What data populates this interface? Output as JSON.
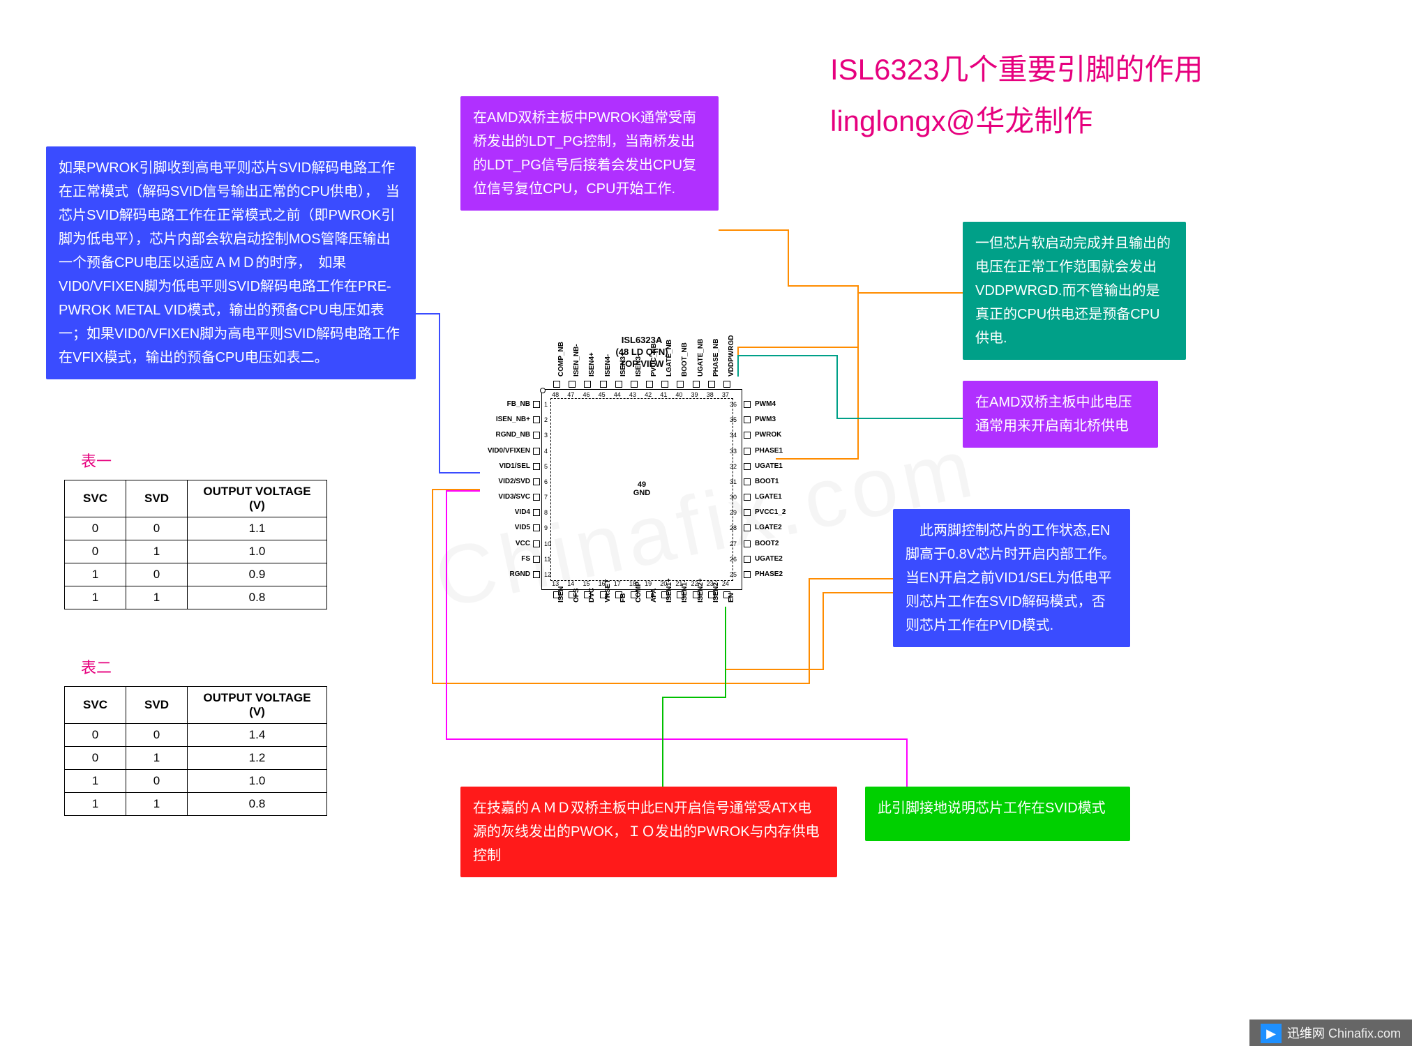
{
  "title": {
    "line1": "ISL6323几个重要引脚的作用",
    "line2": "linglongx@华龙制作"
  },
  "callouts": {
    "blue_left": {
      "bg": "#3a4cff",
      "text": "如果PWROK引脚收到高电平则芯片SVID解码电路工作在正常模式（解码SVID信号输出正常的CPU供电），　当芯片SVID解码电路工作在正常模式之前（即PWROK引脚为低电平），芯片内部会软启动控制MOS管降压输出一个预备CPU电压以适应ＡＭＤ的时序，　如果VID0/VFIXEN脚为低电平则SVID解码电路工作在PRE-PWROK METAL VID模式，输出的预备CPU电压如表一；如果VID0/VFIXEN脚为高电平则SVID解码电路工作在VFIX模式，输出的预备CPU电压如表二。"
    },
    "purple_top": {
      "bg": "#b030ff",
      "text": "在AMD双桥主板中PWROK通常受南桥发出的LDT_PG控制，当南桥发出的LDT_PG信号后接着会发出CPU复位信号复位CPU，CPU开始工作."
    },
    "teal_right": {
      "bg": "#00a088",
      "text": "一但芯片软启动完成并且输出的电压在正常工作范围就会发出VDDPWRGD.而不管输出的是真正的CPU供电还是预备CPU供电."
    },
    "purple_right": {
      "bg": "#b030ff",
      "text": "在AMD双桥主板中此电压通常用来开启南北桥供电"
    },
    "blue_right": {
      "bg": "#3a4cff",
      "text": "　此两脚控制芯片的工作状态,EN脚高于0.8V芯片时开启内部工作。当EN开启之前VID1/SEL为低电平则芯片工作在SVID解码模式，否则芯片工作在PVID模式."
    },
    "red_bottom": {
      "bg": "#ff1a1a",
      "text": "在技嘉的ＡＭＤ双桥主板中此EN开启信号通常受ATX电源的灰线发出的PWOK，ＩＯ发出的PWROK与内存供电控制"
    },
    "green_bottom": {
      "bg": "#00d000",
      "text": "此引脚接地说明芯片工作在SVID模式"
    }
  },
  "tables": {
    "label1": "表一",
    "label2": "表二",
    "headers": [
      "SVC",
      "SVD",
      "OUTPUT VOLTAGE (V)"
    ],
    "t1": [
      [
        "0",
        "0",
        "1.1"
      ],
      [
        "0",
        "1",
        "1.0"
      ],
      [
        "1",
        "0",
        "0.9"
      ],
      [
        "1",
        "1",
        "0.8"
      ]
    ],
    "t2": [
      [
        "0",
        "0",
        "1.4"
      ],
      [
        "0",
        "1",
        "1.2"
      ],
      [
        "1",
        "0",
        "1.0"
      ],
      [
        "1",
        "1",
        "0.8"
      ]
    ]
  },
  "chip": {
    "name": "ISL6323A",
    "pkg": "(48 LD QFN)",
    "view": "TOP VIEW",
    "center_num": "49",
    "center_lbl": "GND",
    "left": [
      "FB_NB",
      "ISEN_NB+",
      "RGND_NB",
      "VID0/VFIXEN",
      "VID1/SEL",
      "VID2/SVD",
      "VID3/SVC",
      "VID4",
      "VID5",
      "VCC",
      "FS",
      "RGND"
    ],
    "right": [
      "PWM4",
      "PWM3",
      "PWROK",
      "PHASE1",
      "UGATE1",
      "BOOT1",
      "LGATE1",
      "PVCC1_2",
      "LGATE2",
      "BOOT2",
      "UGATE2",
      "PHASE2"
    ],
    "top": [
      "COMP_NB",
      "ISEN_NB-",
      "ISEN4+",
      "ISEN4-",
      "ISEN3+",
      "ISEN3-",
      "PVCC_NB",
      "LGATE_NB",
      "BOOT_NB",
      "UGATE_NB",
      "PHASE_NB",
      "VDDPWRGD"
    ],
    "bot": [
      "I​SEN",
      "OFS",
      "DVC",
      "VRSET",
      "FB",
      "COMP",
      "APA",
      "ISEN1+",
      "ISEN1-",
      "ISEN2+",
      "ISEN2-",
      "EN"
    ],
    "left_nums": [
      "1",
      "2",
      "3",
      "4",
      "5",
      "6",
      "7",
      "8",
      "9",
      "10",
      "11",
      "12"
    ],
    "right_nums": [
      "36",
      "35",
      "34",
      "33",
      "32",
      "31",
      "30",
      "29",
      "28",
      "27",
      "26",
      "25"
    ],
    "top_nums": [
      "48",
      "47",
      "46",
      "45",
      "44",
      "43",
      "42",
      "41",
      "40",
      "39",
      "38",
      "37"
    ],
    "bot_nums": [
      "13",
      "14",
      "15",
      "16",
      "17",
      "18",
      "19",
      "20",
      "21",
      "22",
      "23",
      "24"
    ]
  },
  "line_colors": {
    "orange": "#ff8c00",
    "blue": "#3a4cff",
    "magenta": "#ff00ff",
    "green": "#00c000",
    "teal": "#00a088"
  },
  "footer": {
    "brand": "迅维网",
    "domain": "Chinafix.com"
  }
}
